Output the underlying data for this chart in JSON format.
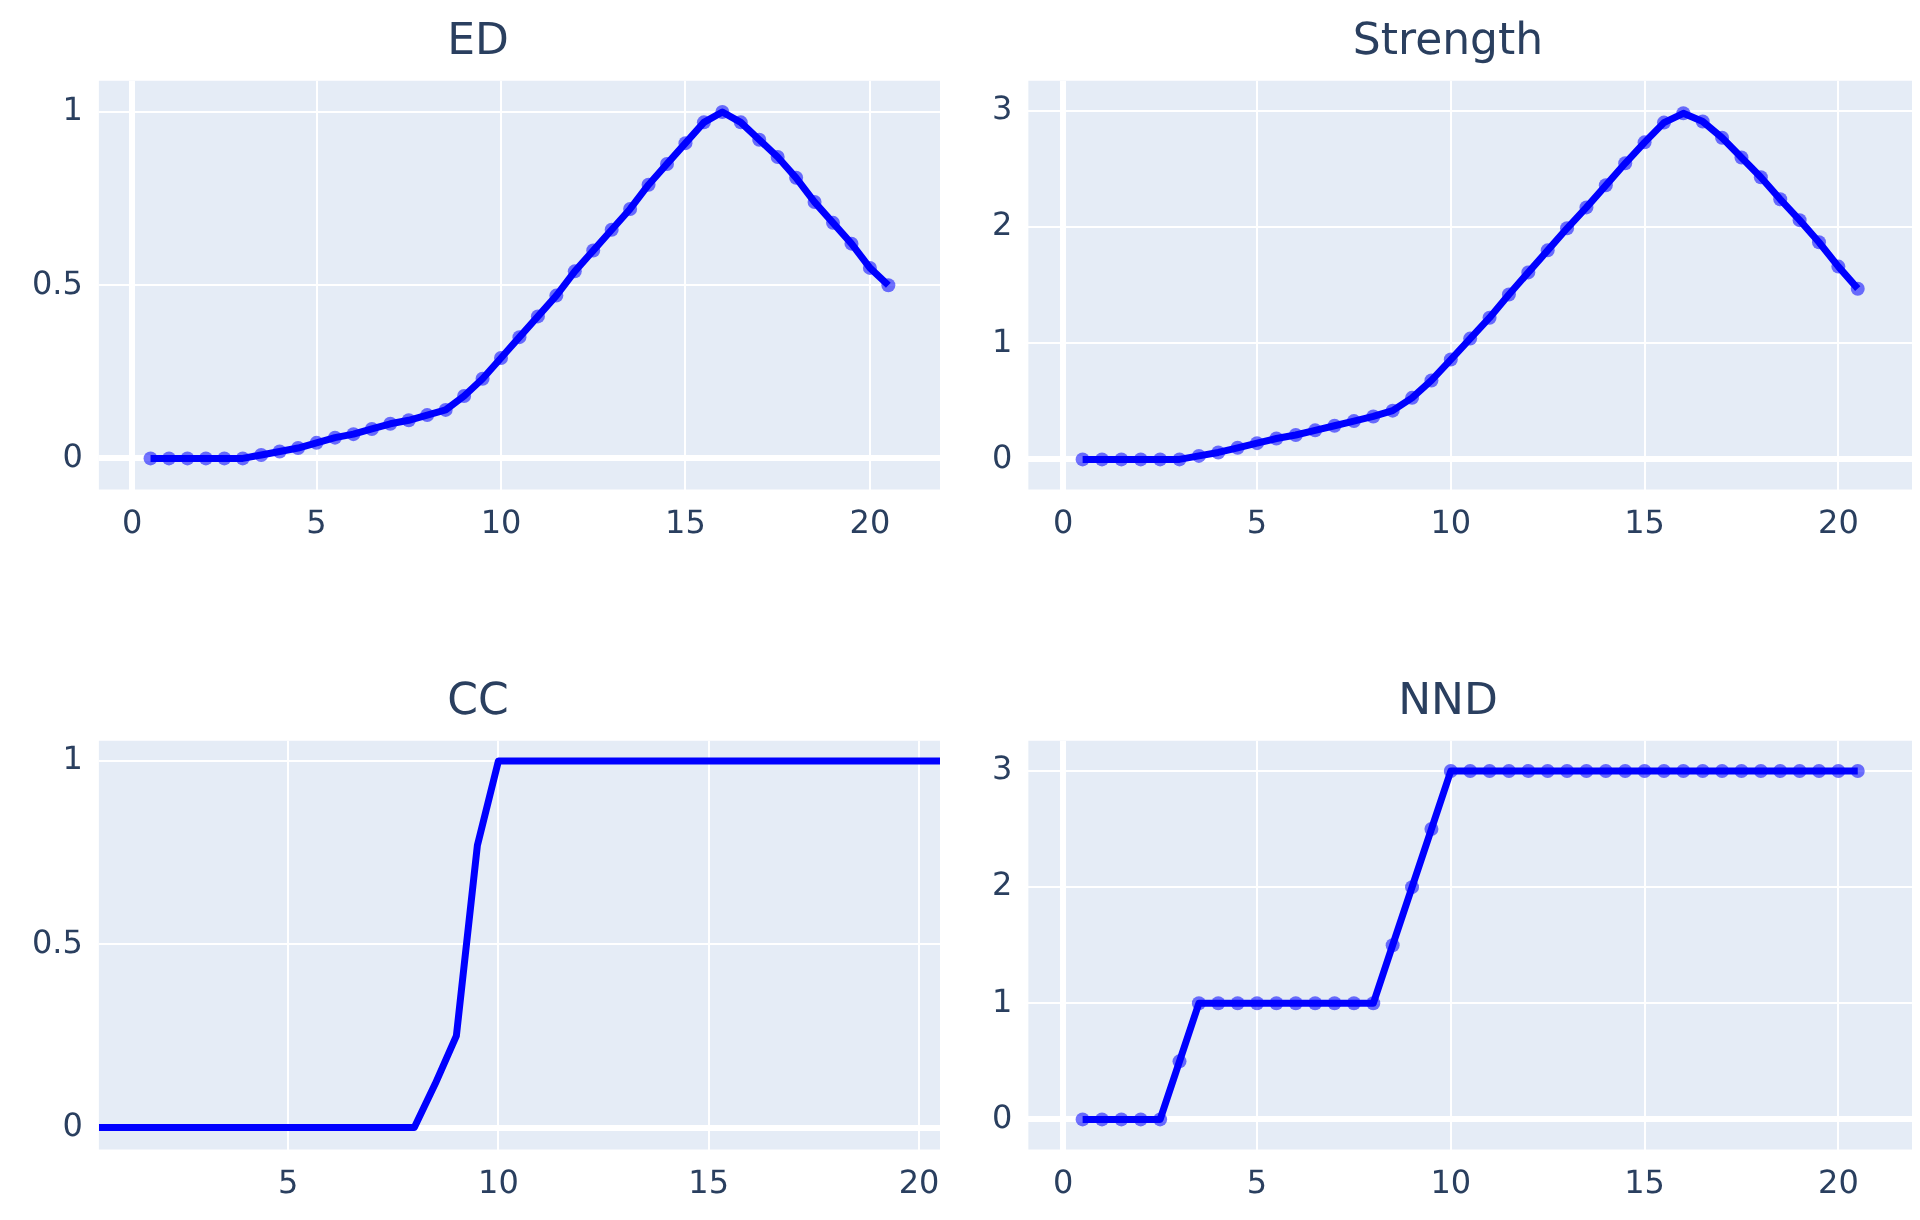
{
  "chart_data": [
    {
      "type": "line",
      "title": "ED",
      "x": [
        0.5,
        1,
        1.5,
        2,
        2.5,
        3,
        3.5,
        4,
        4.5,
        5,
        5.5,
        6,
        6.5,
        7,
        7.5,
        8,
        8.5,
        9,
        9.5,
        10,
        10.5,
        11,
        11.5,
        12,
        12.5,
        13,
        13.5,
        14,
        14.5,
        15,
        15.5,
        16,
        16.5,
        17,
        17.5,
        18,
        18.5,
        19,
        19.5,
        20,
        20.5
      ],
      "series": [
        {
          "color": "#0000ff",
          "values": [
            0,
            0,
            0,
            0,
            0,
            0,
            0.01,
            0.02,
            0.03,
            0.045,
            0.06,
            0.07,
            0.085,
            0.1,
            0.11,
            0.125,
            0.14,
            0.18,
            0.23,
            0.29,
            0.35,
            0.41,
            0.47,
            0.54,
            0.6,
            0.66,
            0.72,
            0.79,
            0.85,
            0.91,
            0.97,
            1,
            0.97,
            0.92,
            0.87,
            0.81,
            0.74,
            0.68,
            0.62,
            0.55,
            0.5
          ]
        }
      ],
      "xlim": [
        -0.9,
        21.9
      ],
      "xticks": [
        0,
        5,
        10,
        15,
        20
      ],
      "ylim": [
        -0.09,
        1.09
      ],
      "yticks": [
        0,
        0.5,
        1
      ],
      "grid": true,
      "marker": "circle"
    },
    {
      "type": "line",
      "title": "Strength",
      "x": [
        0.5,
        1,
        1.5,
        2,
        2.5,
        3,
        3.5,
        4,
        4.5,
        5,
        5.5,
        6,
        6.5,
        7,
        7.5,
        8,
        8.5,
        9,
        9.5,
        10,
        10.5,
        11,
        11.5,
        12,
        12.5,
        13,
        13.5,
        14,
        14.5,
        15,
        15.5,
        16,
        16.5,
        17,
        17.5,
        18,
        18.5,
        19,
        19.5,
        20,
        20.5
      ],
      "series": [
        {
          "color": "#0000ff",
          "values": [
            0,
            0,
            0,
            0,
            0,
            0,
            0.03,
            0.06,
            0.1,
            0.14,
            0.18,
            0.21,
            0.25,
            0.29,
            0.33,
            0.37,
            0.42,
            0.53,
            0.68,
            0.86,
            1.04,
            1.22,
            1.42,
            1.61,
            1.8,
            1.99,
            2.17,
            2.36,
            2.55,
            2.73,
            2.9,
            2.98,
            2.91,
            2.77,
            2.6,
            2.43,
            2.24,
            2.06,
            1.87,
            1.66,
            1.47
          ]
        }
      ],
      "xlim": [
        -0.9,
        21.9
      ],
      "xticks": [
        0,
        5,
        10,
        15,
        20
      ],
      "ylim": [
        -0.26,
        3.26
      ],
      "yticks": [
        0,
        1,
        2,
        3
      ],
      "grid": true,
      "marker": "circle"
    },
    {
      "type": "line",
      "title": "CC",
      "x": [
        0.5,
        1,
        1.5,
        2,
        2.5,
        3,
        3.5,
        4,
        4.5,
        5,
        5.5,
        6,
        6.5,
        7,
        7.5,
        8,
        8.5,
        9,
        9.5,
        10,
        10.5,
        11,
        11.5,
        12,
        12.5,
        13,
        13.5,
        14,
        14.5,
        15,
        15.5,
        16,
        16.5,
        17,
        17.5,
        18,
        18.5,
        19,
        19.5,
        20,
        20.5
      ],
      "series": [
        {
          "color": "#0000ff",
          "values": [
            0,
            0,
            0,
            0,
            0,
            0,
            0,
            0,
            0,
            0,
            0,
            0,
            0,
            0,
            0,
            0,
            0.12,
            0.25,
            0.77,
            1,
            1,
            1,
            1,
            1,
            1,
            1,
            1,
            1,
            1,
            1,
            1,
            1,
            1,
            1,
            1,
            1,
            1,
            1,
            1,
            1,
            1
          ]
        }
      ],
      "xlim": [
        0.5,
        20.5
      ],
      "xticks": [
        5,
        10,
        15,
        20
      ],
      "ylim": [
        -0.06,
        1.055
      ],
      "yticks": [
        0,
        0.5,
        1
      ],
      "grid": true
    },
    {
      "type": "line",
      "title": "NND",
      "x": [
        0.5,
        1,
        1.5,
        2,
        2.5,
        3,
        3.5,
        4,
        4.5,
        5,
        5.5,
        6,
        6.5,
        7,
        7.5,
        8,
        8.5,
        9,
        9.5,
        10,
        10.5,
        11,
        11.5,
        12,
        12.5,
        13,
        13.5,
        14,
        14.5,
        15,
        15.5,
        16,
        16.5,
        17,
        17.5,
        18,
        18.5,
        19,
        19.5,
        20,
        20.5
      ],
      "series": [
        {
          "color": "#0000ff",
          "values": [
            0,
            0,
            0,
            0,
            0,
            0.5,
            1,
            1,
            1,
            1,
            1,
            1,
            1,
            1,
            1,
            1,
            1.5,
            2,
            2.5,
            3,
            3,
            3,
            3,
            3,
            3,
            3,
            3,
            3,
            3,
            3,
            3,
            3,
            3,
            3,
            3,
            3,
            3,
            3,
            3,
            3,
            3
          ]
        }
      ],
      "xlim": [
        -0.9,
        21.9
      ],
      "xticks": [
        0,
        5,
        10,
        15,
        20
      ],
      "ylim": [
        -0.26,
        3.26
      ],
      "yticks": [
        0,
        1,
        2,
        3
      ],
      "grid": true,
      "marker": "circle"
    }
  ]
}
